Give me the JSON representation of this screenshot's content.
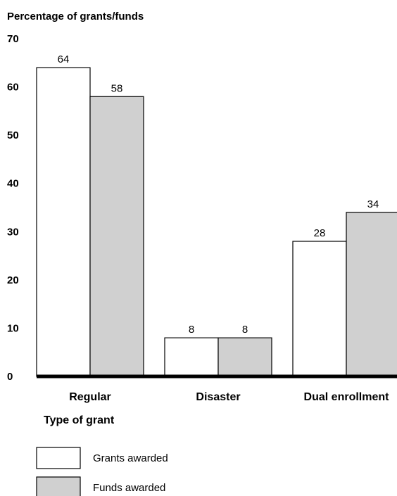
{
  "chart_data": {
    "type": "bar",
    "ylabel": "Percentage of grants/funds",
    "xlabel": "Type of grant",
    "categories": [
      "Regular",
      "Disaster",
      "Dual enrollment"
    ],
    "series": [
      {
        "name": "Grants awarded",
        "values": [
          64,
          8,
          28
        ],
        "color": "#ffffff"
      },
      {
        "name": "Funds awarded",
        "values": [
          58,
          8,
          34
        ],
        "color": "#d0d0d0"
      }
    ],
    "ylim": [
      0,
      70
    ],
    "yticks": [
      "0",
      "10",
      "20",
      "30",
      "40",
      "50",
      "60",
      "70"
    ],
    "grid": false,
    "legend": "bottom-left",
    "stroke_color": "#000000"
  }
}
